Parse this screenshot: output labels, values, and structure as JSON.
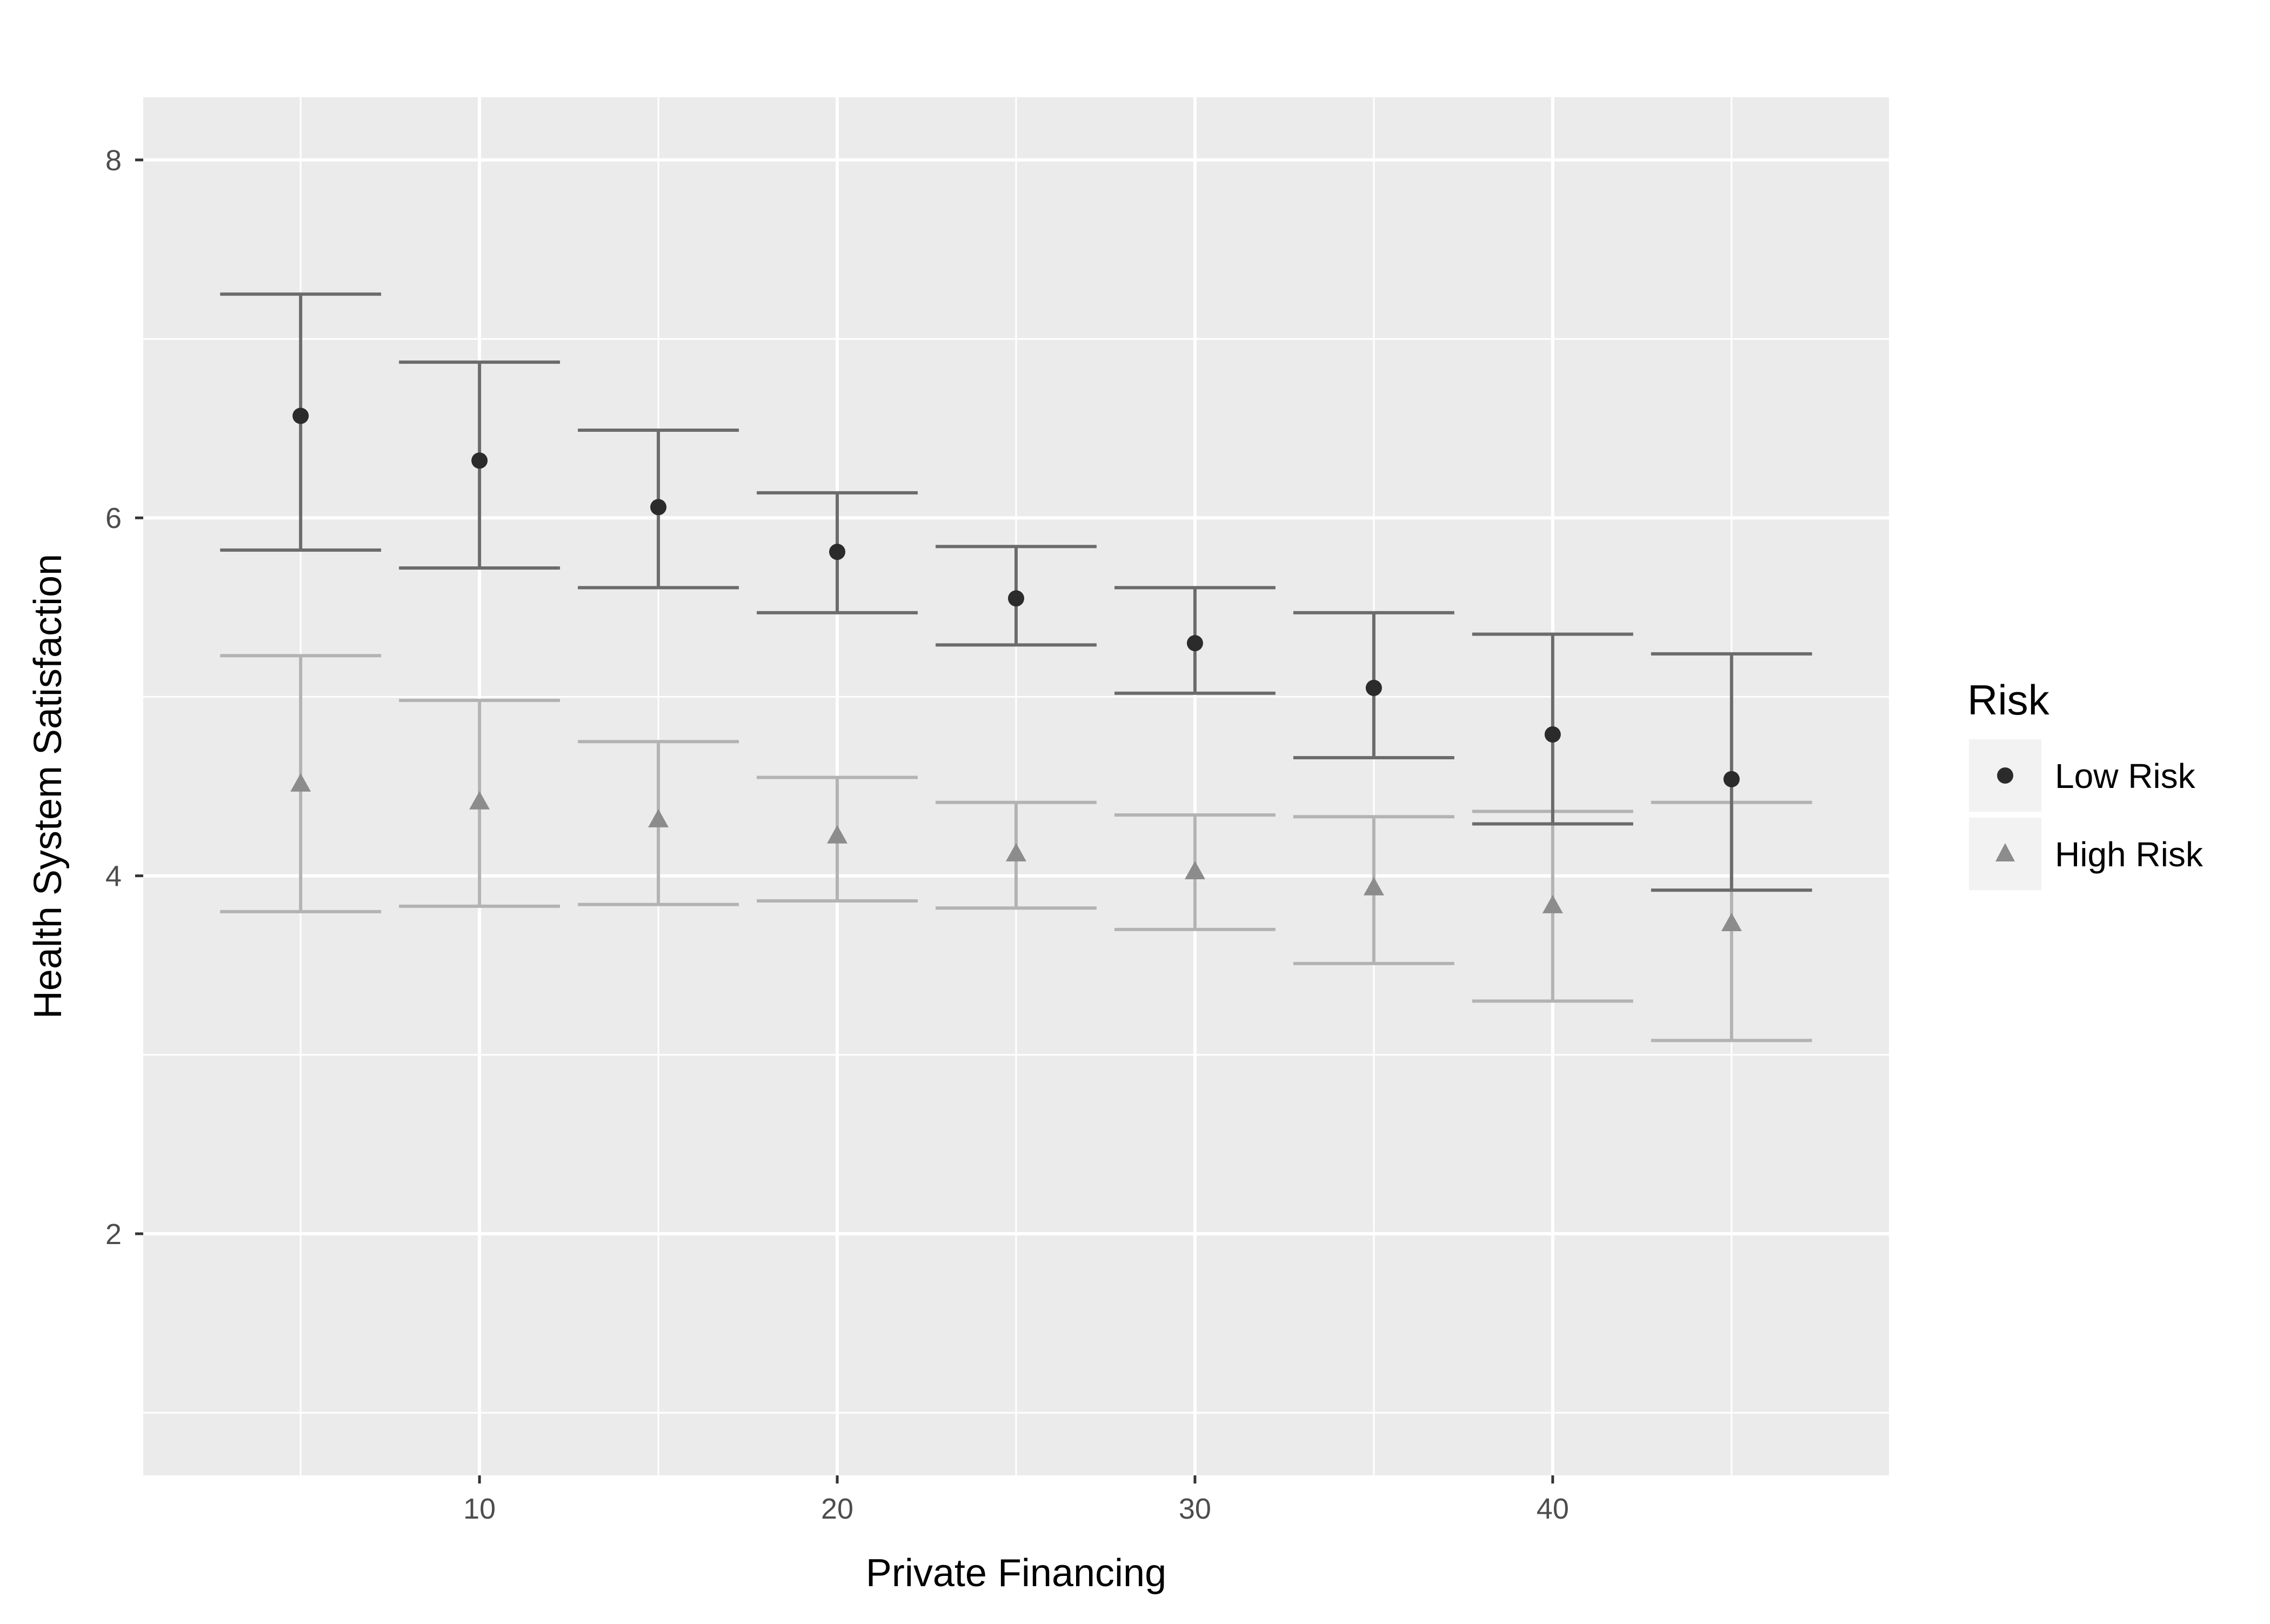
{
  "chart_data": {
    "type": "scatter",
    "style": "points with error bars",
    "xlabel": "Private Financing",
    "ylabel": "Health System Satisfaction",
    "xlim": [
      0.6,
      49.4
    ],
    "ylim": [
      0.65,
      8.35
    ],
    "x_ticks": [
      10,
      20,
      30,
      40
    ],
    "y_ticks": [
      2,
      4,
      6,
      8
    ],
    "x_tick_labels": [
      "10",
      "20",
      "30",
      "40"
    ],
    "y_tick_labels": [
      "2",
      "4",
      "6",
      "8"
    ],
    "grid": true,
    "legend": {
      "title": "Risk",
      "position": "right"
    },
    "series": [
      {
        "name": "Low Risk",
        "marker": "circle",
        "color": "#2b2b2b",
        "bar_color": "#6b6b6b",
        "points": [
          {
            "x": 5,
            "y": 6.57,
            "lower": 5.82,
            "upper": 7.25
          },
          {
            "x": 10,
            "y": 6.32,
            "lower": 5.72,
            "upper": 6.87
          },
          {
            "x": 15,
            "y": 6.06,
            "lower": 5.61,
            "upper": 6.49
          },
          {
            "x": 20,
            "y": 5.81,
            "lower": 5.47,
            "upper": 6.14
          },
          {
            "x": 25,
            "y": 5.55,
            "lower": 5.29,
            "upper": 5.84
          },
          {
            "x": 30,
            "y": 5.3,
            "lower": 5.02,
            "upper": 5.61
          },
          {
            "x": 35,
            "y": 5.05,
            "lower": 4.66,
            "upper": 5.47
          },
          {
            "x": 40,
            "y": 4.79,
            "lower": 4.29,
            "upper": 5.35
          },
          {
            "x": 45,
            "y": 4.54,
            "lower": 3.92,
            "upper": 5.24
          }
        ]
      },
      {
        "name": "High Risk",
        "marker": "triangle",
        "color": "#8c8c8c",
        "bar_color": "#b3b3b3",
        "points": [
          {
            "x": 5,
            "y": 4.51,
            "lower": 3.8,
            "upper": 5.23
          },
          {
            "x": 10,
            "y": 4.41,
            "lower": 3.83,
            "upper": 4.98
          },
          {
            "x": 15,
            "y": 4.31,
            "lower": 3.84,
            "upper": 4.75
          },
          {
            "x": 20,
            "y": 4.22,
            "lower": 3.86,
            "upper": 4.55
          },
          {
            "x": 25,
            "y": 4.12,
            "lower": 3.82,
            "upper": 4.41
          },
          {
            "x": 30,
            "y": 4.02,
            "lower": 3.7,
            "upper": 4.34
          },
          {
            "x": 35,
            "y": 3.93,
            "lower": 3.51,
            "upper": 4.33
          },
          {
            "x": 40,
            "y": 3.83,
            "lower": 3.3,
            "upper": 4.36
          },
          {
            "x": 45,
            "y": 3.73,
            "lower": 3.08,
            "upper": 4.41
          }
        ]
      }
    ]
  }
}
